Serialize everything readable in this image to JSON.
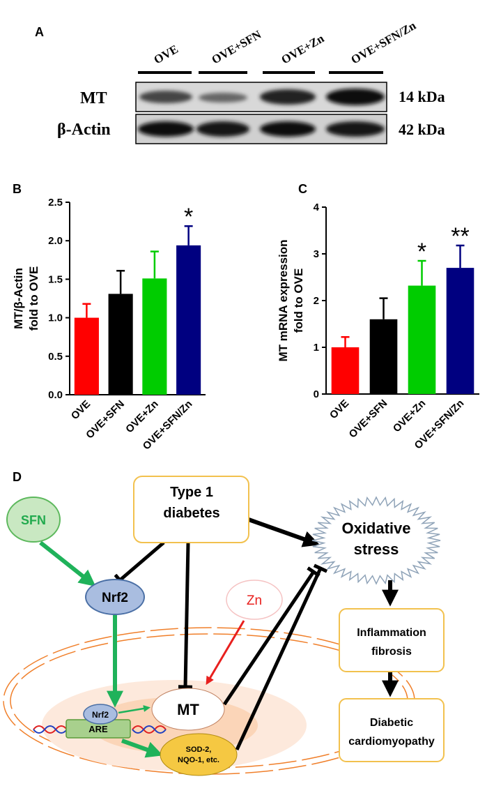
{
  "panel_a": {
    "label": "A",
    "lanes": [
      "OVE",
      "OVE+SFN",
      "OVE+Zn",
      "OVE+SFN/Zn"
    ],
    "rows": [
      {
        "name": "MT",
        "size": "14 kDa"
      },
      {
        "name": "β-Actin",
        "size": "42 kDa"
      }
    ]
  },
  "chart_data": [
    {
      "type": "bar",
      "panel": "B",
      "ylabel": [
        "MT/β-Actin",
        "fold to OVE"
      ],
      "categories": [
        "OVE",
        "OVE+SFN",
        "OVE+Zn",
        "OVE+SFN/Zn"
      ],
      "values": [
        1.0,
        1.31,
        1.51,
        1.94
      ],
      "errors": [
        0.18,
        0.3,
        0.35,
        0.25
      ],
      "colors": [
        "#ff0000",
        "#000000",
        "#00cc00",
        "#000080"
      ],
      "significance": [
        null,
        null,
        null,
        "*"
      ],
      "ylim": [
        0,
        2.5
      ],
      "yticks": [
        {
          "value": 0,
          "label": "0.0"
        },
        0.5,
        {
          "value": 1,
          "label": "1.0"
        },
        1.5,
        {
          "value": 2,
          "label": "2.0"
        },
        2.5
      ]
    },
    {
      "type": "bar",
      "panel": "C",
      "ylabel": [
        "MT mRNA expression",
        "fold to OVE"
      ],
      "categories": [
        "OVE",
        "OVE+SFN",
        "OVE+Zn",
        "OVE+SFN/Zn"
      ],
      "values": [
        1.0,
        1.6,
        2.32,
        2.7
      ],
      "errors": [
        0.22,
        0.45,
        0.53,
        0.48
      ],
      "colors": [
        "#ff0000",
        "#000000",
        "#00cc00",
        "#000080"
      ],
      "significance": [
        null,
        null,
        "*",
        "**"
      ],
      "ylim": [
        0,
        4
      ],
      "yticks": [
        0,
        1,
        2,
        3,
        4
      ]
    }
  ],
  "diagram": {
    "label": "D",
    "sfn": "SFN",
    "type1_diabetes": [
      "Type 1",
      "diabetes"
    ],
    "nrf2": "Nrf2",
    "zn": "Zn",
    "oxidative_stress": [
      "Oxidative",
      "stress"
    ],
    "nrf2_nuclear": "Nrf2",
    "are": "ARE",
    "mt": "MT",
    "antioxidants": [
      "SOD-2,",
      "NQO-1, etc."
    ],
    "inflammation": [
      "Inflammation",
      "fibrosis"
    ],
    "outcome": [
      "Diabetic",
      "cardiomyopathy"
    ]
  }
}
